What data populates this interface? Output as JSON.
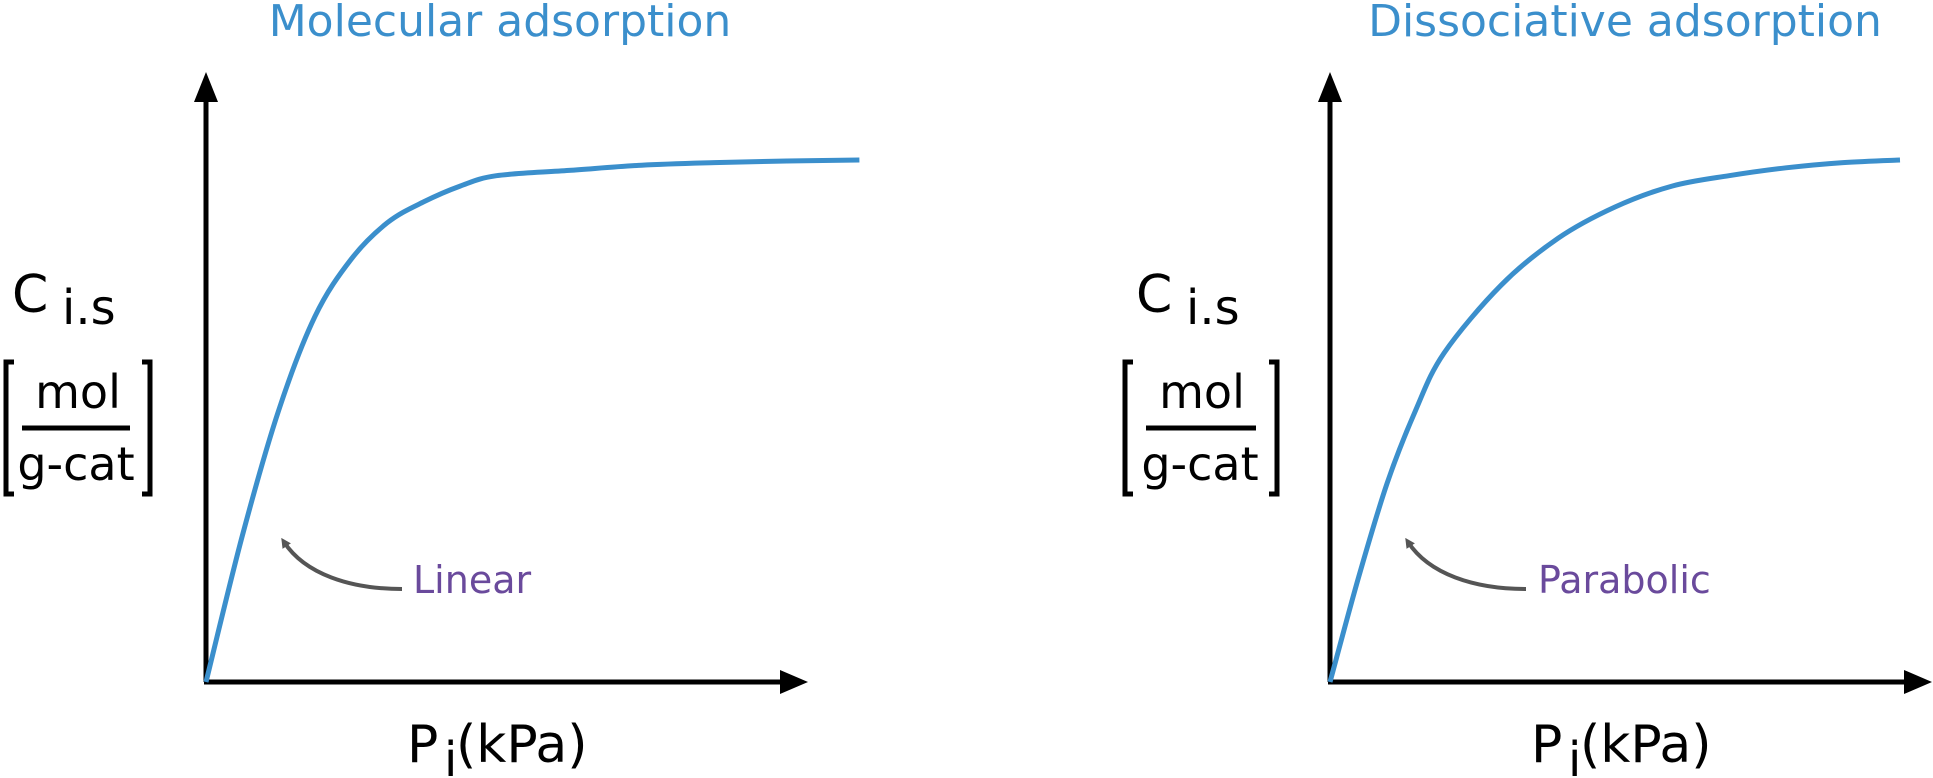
{
  "colors": {
    "curve": "#3b8fcc",
    "title": "#3b8fcc",
    "annotation": "#6a4a9c",
    "arrow": "#555555",
    "axis": "#000000"
  },
  "chart_data": [
    {
      "type": "line",
      "title": "Molecular adsorption",
      "ylabel_symbol": "C",
      "ylabel_subscript": "i.s",
      "ylabel_unit_numerator": "mol",
      "ylabel_unit_denominator": "g-cat",
      "xlabel_symbol": "P",
      "xlabel_subscript": "i",
      "xlabel_unit": "(kPa)",
      "annotation": "Linear",
      "xlim": [
        0,
        1
      ],
      "ylim": [
        0,
        1
      ],
      "grid": false,
      "series": [
        {
          "x": [
            0,
            0.05,
            0.1,
            0.15,
            0.2,
            0.25,
            0.3,
            0.35,
            0.4,
            0.5,
            0.6,
            0.7,
            0.8,
            0.9
          ],
          "y": [
            0,
            0.28,
            0.52,
            0.7,
            0.81,
            0.88,
            0.92,
            0.95,
            0.97,
            0.98,
            0.99,
            0.995,
            0.998,
            1.0
          ]
        }
      ]
    },
    {
      "type": "line",
      "title": "Dissociative adsorption",
      "ylabel_symbol": "C",
      "ylabel_subscript": "i.s",
      "ylabel_unit_numerator": "mol",
      "ylabel_unit_denominator": "g-cat",
      "xlabel_symbol": "P",
      "xlabel_subscript": "i",
      "xlabel_unit": "(kPa)",
      "annotation": "Parabolic",
      "xlim": [
        0,
        1
      ],
      "ylim": [
        0,
        1
      ],
      "grid": false,
      "series": [
        {
          "x": [
            0,
            0.05,
            0.1,
            0.15,
            0.2,
            0.3,
            0.4,
            0.5,
            0.6,
            0.7,
            0.8,
            0.9,
            1.0
          ],
          "y": [
            0,
            0.2,
            0.38,
            0.52,
            0.63,
            0.76,
            0.85,
            0.91,
            0.95,
            0.97,
            0.985,
            0.995,
            1.0
          ]
        }
      ]
    }
  ]
}
